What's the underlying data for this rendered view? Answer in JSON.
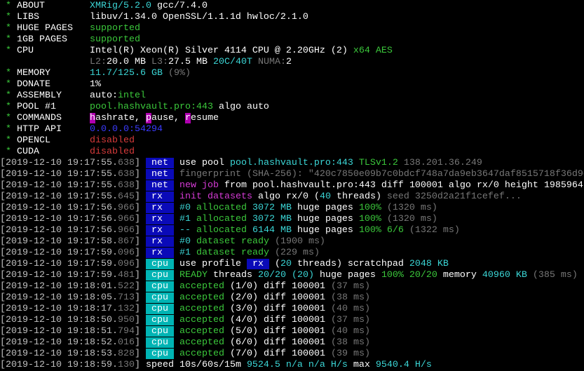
{
  "colors": {
    "background": "#000000",
    "net_tag": "#0a0ab8",
    "cpu_tag": "#00b4b4",
    "green": "#3bc83b",
    "cyan": "#3bd6d6",
    "magenta": "#d63bd6",
    "blue": "#3b3bff",
    "red": "#d83b3b",
    "gray": "#777777"
  },
  "lines": [
    {
      "segs": [
        [
          " * ",
          "g"
        ],
        [
          "ABOUT        ",
          "W"
        ],
        [
          "XMRig/5.2.0",
          "c"
        ],
        [
          " gcc/7.4.0",
          "W"
        ]
      ]
    },
    {
      "segs": [
        [
          " * ",
          "g"
        ],
        [
          "LIBS         ",
          "W"
        ],
        [
          "libuv/1.34.0 OpenSSL/1.1.1d hwloc/2.1.0",
          "W"
        ]
      ]
    },
    {
      "segs": [
        [
          " * ",
          "g"
        ],
        [
          "HUGE PAGES   ",
          "W"
        ],
        [
          "supported",
          "g"
        ]
      ]
    },
    {
      "segs": [
        [
          " * ",
          "g"
        ],
        [
          "1GB PAGES    ",
          "W"
        ],
        [
          "supported",
          "g"
        ]
      ]
    },
    {
      "segs": [
        [
          " * ",
          "g"
        ],
        [
          "CPU          ",
          "W"
        ],
        [
          "Intel(R) Xeon(R) Silver 4114 CPU @ 2.20GHz (2)",
          "W"
        ],
        [
          " x64 AES",
          "g"
        ]
      ]
    },
    {
      "segs": [
        [
          "                ",
          "w"
        ],
        [
          "L2:",
          "gr"
        ],
        [
          "20.0 MB",
          "W"
        ],
        [
          " L3:",
          "gr"
        ],
        [
          "27.5 MB",
          "W"
        ],
        [
          " 20C/40T",
          "c"
        ],
        [
          " NUMA:",
          "gr"
        ],
        [
          "2",
          "W"
        ]
      ]
    },
    {
      "segs": [
        [
          " * ",
          "g"
        ],
        [
          "MEMORY       ",
          "W"
        ],
        [
          "11.7/125.6 GB",
          "c"
        ],
        [
          " (9%)",
          "gr"
        ]
      ]
    },
    {
      "segs": [
        [
          " * ",
          "g"
        ],
        [
          "DONATE       ",
          "W"
        ],
        [
          "1%",
          "W"
        ]
      ]
    },
    {
      "segs": [
        [
          " * ",
          "g"
        ],
        [
          "ASSEMBLY     ",
          "W"
        ],
        [
          "auto:",
          "W"
        ],
        [
          "intel",
          "g"
        ]
      ]
    },
    {
      "segs": [
        [
          " * ",
          "g"
        ],
        [
          "POOL #1      ",
          "W"
        ],
        [
          "pool.hashvault.pro:443",
          "g"
        ],
        [
          " algo auto",
          "W"
        ]
      ]
    },
    {
      "segs": [
        [
          " * ",
          "g"
        ],
        [
          "COMMANDS     ",
          "W"
        ],
        [
          "h",
          "mbg"
        ],
        [
          "ashrate, ",
          "W"
        ],
        [
          "p",
          "mbg"
        ],
        [
          "ause, ",
          "W"
        ],
        [
          "r",
          "mbg"
        ],
        [
          "esume",
          "W"
        ]
      ]
    },
    {
      "segs": [
        [
          " * ",
          "g"
        ],
        [
          "HTTP API     ",
          "W"
        ],
        [
          "0.0.0.0:54294",
          "b"
        ]
      ]
    },
    {
      "segs": [
        [
          " * ",
          "g"
        ],
        [
          "OPENCL       ",
          "W"
        ],
        [
          "disabled",
          "r"
        ]
      ]
    },
    {
      "segs": [
        [
          " * ",
          "g"
        ],
        [
          "CUDA         ",
          "W"
        ],
        [
          "disabled",
          "r"
        ]
      ]
    },
    {
      "segs": [
        [
          "[2019-12-10 19:17:55.",
          "ts"
        ],
        [
          "638",
          "gr"
        ],
        [
          "] ",
          "ts"
        ],
        [
          " net ",
          "tagnet"
        ],
        [
          " ",
          "w"
        ],
        [
          "use pool ",
          "W"
        ],
        [
          "pool.hashvault.pro:443 ",
          "c"
        ],
        [
          "TLSv1.2 ",
          "g"
        ],
        [
          "138.201.36.249",
          "gr"
        ]
      ]
    },
    {
      "segs": [
        [
          "[2019-12-10 19:17:55.",
          "ts"
        ],
        [
          "638",
          "gr"
        ],
        [
          "] ",
          "ts"
        ],
        [
          " net ",
          "tagnet"
        ],
        [
          " ",
          "w"
        ],
        [
          "fingerprint (SHA-256): \"420c7850e09b7c0bdcf748a7da9eb3647daf8515718f36d9e",
          "gr"
        ]
      ]
    },
    {
      "segs": [
        [
          "[2019-12-10 19:17:55.",
          "ts"
        ],
        [
          "638",
          "gr"
        ],
        [
          "] ",
          "ts"
        ],
        [
          " net ",
          "tagnet"
        ],
        [
          " ",
          "w"
        ],
        [
          "new job",
          "m"
        ],
        [
          " from ",
          "W"
        ],
        [
          "pool.hashvault.pro:443",
          "W"
        ],
        [
          " diff ",
          "W"
        ],
        [
          "100001",
          "W"
        ],
        [
          " algo ",
          "W"
        ],
        [
          "rx/0",
          "W"
        ],
        [
          " height ",
          "W"
        ],
        [
          "1985964",
          "W"
        ]
      ]
    },
    {
      "segs": [
        [
          "[2019-12-10 19:17:55.",
          "ts"
        ],
        [
          "645",
          "gr"
        ],
        [
          "] ",
          "ts"
        ],
        [
          " rx  ",
          "tagnet"
        ],
        [
          " ",
          "w"
        ],
        [
          "init datasets",
          "m"
        ],
        [
          " algo ",
          "W"
        ],
        [
          "rx/0",
          "W"
        ],
        [
          " (",
          "W"
        ],
        [
          "40",
          "c"
        ],
        [
          " threads)",
          "W"
        ],
        [
          " seed 3250d2a21f1cefef...",
          "gr"
        ]
      ]
    },
    {
      "segs": [
        [
          "[2019-12-10 19:17:56.",
          "ts"
        ],
        [
          "966",
          "gr"
        ],
        [
          "] ",
          "ts"
        ],
        [
          " rx  ",
          "tagnet"
        ],
        [
          " ",
          "w"
        ],
        [
          "#0",
          "c"
        ],
        [
          " allocated ",
          "g"
        ],
        [
          "3072 MB",
          "c"
        ],
        [
          " huge pages ",
          "W"
        ],
        [
          "100%",
          "g"
        ],
        [
          " (1320 ms)",
          "gr"
        ]
      ]
    },
    {
      "segs": [
        [
          "[2019-12-10 19:17:56.",
          "ts"
        ],
        [
          "966",
          "gr"
        ],
        [
          "] ",
          "ts"
        ],
        [
          " rx  ",
          "tagnet"
        ],
        [
          " ",
          "w"
        ],
        [
          "#1",
          "c"
        ],
        [
          " allocated ",
          "g"
        ],
        [
          "3072 MB",
          "c"
        ],
        [
          " huge pages ",
          "W"
        ],
        [
          "100%",
          "g"
        ],
        [
          " (1320 ms)",
          "gr"
        ]
      ]
    },
    {
      "segs": [
        [
          "[2019-12-10 19:17:56.",
          "ts"
        ],
        [
          "966",
          "gr"
        ],
        [
          "] ",
          "ts"
        ],
        [
          " rx  ",
          "tagnet"
        ],
        [
          " ",
          "w"
        ],
        [
          "--",
          "c"
        ],
        [
          " allocated ",
          "g"
        ],
        [
          "6144 MB",
          "c"
        ],
        [
          " huge pages ",
          "W"
        ],
        [
          "100% 6/6",
          "g"
        ],
        [
          " (1322 ms)",
          "gr"
        ]
      ]
    },
    {
      "segs": [
        [
          "[2019-12-10 19:17:58.",
          "ts"
        ],
        [
          "867",
          "gr"
        ],
        [
          "] ",
          "ts"
        ],
        [
          " rx  ",
          "tagnet"
        ],
        [
          " ",
          "w"
        ],
        [
          "#0",
          "c"
        ],
        [
          " dataset ready",
          "g"
        ],
        [
          " (1900 ms)",
          "gr"
        ]
      ]
    },
    {
      "segs": [
        [
          "[2019-12-10 19:17:59.",
          "ts"
        ],
        [
          "096",
          "gr"
        ],
        [
          "] ",
          "ts"
        ],
        [
          " rx  ",
          "tagnet"
        ],
        [
          " ",
          "w"
        ],
        [
          "#1",
          "c"
        ],
        [
          " dataset ready",
          "g"
        ],
        [
          " (229 ms)",
          "gr"
        ]
      ]
    },
    {
      "segs": [
        [
          "[2019-12-10 19:17:59.",
          "ts"
        ],
        [
          "096",
          "gr"
        ],
        [
          "] ",
          "ts"
        ],
        [
          " cpu ",
          "tagcpu"
        ],
        [
          " ",
          "w"
        ],
        [
          "use profile ",
          "W"
        ],
        [
          " rx ",
          "inl"
        ],
        [
          " (",
          "W"
        ],
        [
          "20",
          "c"
        ],
        [
          " threads)",
          "W"
        ],
        [
          " scratchpad ",
          "W"
        ],
        [
          "2048 KB",
          "c"
        ]
      ]
    },
    {
      "segs": [
        [
          "[2019-12-10 19:17:59.",
          "ts"
        ],
        [
          "481",
          "gr"
        ],
        [
          "] ",
          "ts"
        ],
        [
          " cpu ",
          "tagcpu"
        ],
        [
          " ",
          "w"
        ],
        [
          "READY",
          "g"
        ],
        [
          " threads ",
          "W"
        ],
        [
          "20/20",
          "c"
        ],
        [
          " (20)",
          "c"
        ],
        [
          " huge pages ",
          "W"
        ],
        [
          "100% 20/20",
          "g"
        ],
        [
          " memory ",
          "W"
        ],
        [
          "40960 KB",
          "c"
        ],
        [
          " (385 ms)",
          "gr"
        ]
      ]
    },
    {
      "segs": [
        [
          "[2019-12-10 19:18:01.",
          "ts"
        ],
        [
          "522",
          "gr"
        ],
        [
          "] ",
          "ts"
        ],
        [
          " cpu ",
          "tagcpu"
        ],
        [
          " ",
          "w"
        ],
        [
          "accepted",
          "g"
        ],
        [
          " (1/0)",
          "W"
        ],
        [
          " diff ",
          "W"
        ],
        [
          "100001",
          "W"
        ],
        [
          " (37 ms)",
          "gr"
        ]
      ]
    },
    {
      "segs": [
        [
          "[2019-12-10 19:18:05.",
          "ts"
        ],
        [
          "713",
          "gr"
        ],
        [
          "] ",
          "ts"
        ],
        [
          " cpu ",
          "tagcpu"
        ],
        [
          " ",
          "w"
        ],
        [
          "accepted",
          "g"
        ],
        [
          " (2/0)",
          "W"
        ],
        [
          " diff ",
          "W"
        ],
        [
          "100001",
          "W"
        ],
        [
          " (38 ms)",
          "gr"
        ]
      ]
    },
    {
      "segs": [
        [
          "[2019-12-10 19:18:17.",
          "ts"
        ],
        [
          "132",
          "gr"
        ],
        [
          "] ",
          "ts"
        ],
        [
          " cpu ",
          "tagcpu"
        ],
        [
          " ",
          "w"
        ],
        [
          "accepted",
          "g"
        ],
        [
          " (3/0)",
          "W"
        ],
        [
          " diff ",
          "W"
        ],
        [
          "100001",
          "W"
        ],
        [
          " (40 ms)",
          "gr"
        ]
      ]
    },
    {
      "segs": [
        [
          "[2019-12-10 19:18:50.",
          "ts"
        ],
        [
          "950",
          "gr"
        ],
        [
          "] ",
          "ts"
        ],
        [
          " cpu ",
          "tagcpu"
        ],
        [
          " ",
          "w"
        ],
        [
          "accepted",
          "g"
        ],
        [
          " (4/0)",
          "W"
        ],
        [
          " diff ",
          "W"
        ],
        [
          "100001",
          "W"
        ],
        [
          " (37 ms)",
          "gr"
        ]
      ]
    },
    {
      "segs": [
        [
          "[2019-12-10 19:18:51.",
          "ts"
        ],
        [
          "794",
          "gr"
        ],
        [
          "] ",
          "ts"
        ],
        [
          " cpu ",
          "tagcpu"
        ],
        [
          " ",
          "w"
        ],
        [
          "accepted",
          "g"
        ],
        [
          " (5/0)",
          "W"
        ],
        [
          " diff ",
          "W"
        ],
        [
          "100001",
          "W"
        ],
        [
          " (40 ms)",
          "gr"
        ]
      ]
    },
    {
      "segs": [
        [
          "[2019-12-10 19:18:52.",
          "ts"
        ],
        [
          "016",
          "gr"
        ],
        [
          "] ",
          "ts"
        ],
        [
          " cpu ",
          "tagcpu"
        ],
        [
          " ",
          "w"
        ],
        [
          "accepted",
          "g"
        ],
        [
          " (6/0)",
          "W"
        ],
        [
          " diff ",
          "W"
        ],
        [
          "100001",
          "W"
        ],
        [
          " (38 ms)",
          "gr"
        ]
      ]
    },
    {
      "segs": [
        [
          "[2019-12-10 19:18:53.",
          "ts"
        ],
        [
          "828",
          "gr"
        ],
        [
          "] ",
          "ts"
        ],
        [
          " cpu ",
          "tagcpu"
        ],
        [
          " ",
          "w"
        ],
        [
          "accepted",
          "g"
        ],
        [
          " (7/0)",
          "W"
        ],
        [
          " diff ",
          "W"
        ],
        [
          "100001",
          "W"
        ],
        [
          " (39 ms)",
          "gr"
        ]
      ]
    },
    {
      "segs": [
        [
          "[2019-12-10 19:18:59.",
          "ts"
        ],
        [
          "130",
          "gr"
        ],
        [
          "] ",
          "ts"
        ],
        [
          "speed 10s/60s/15m ",
          "W"
        ],
        [
          "9524.5",
          "c"
        ],
        [
          " n/a n/a H/s",
          "c"
        ],
        [
          " max ",
          "W"
        ],
        [
          "9540.4 H/s",
          "c"
        ]
      ]
    }
  ]
}
